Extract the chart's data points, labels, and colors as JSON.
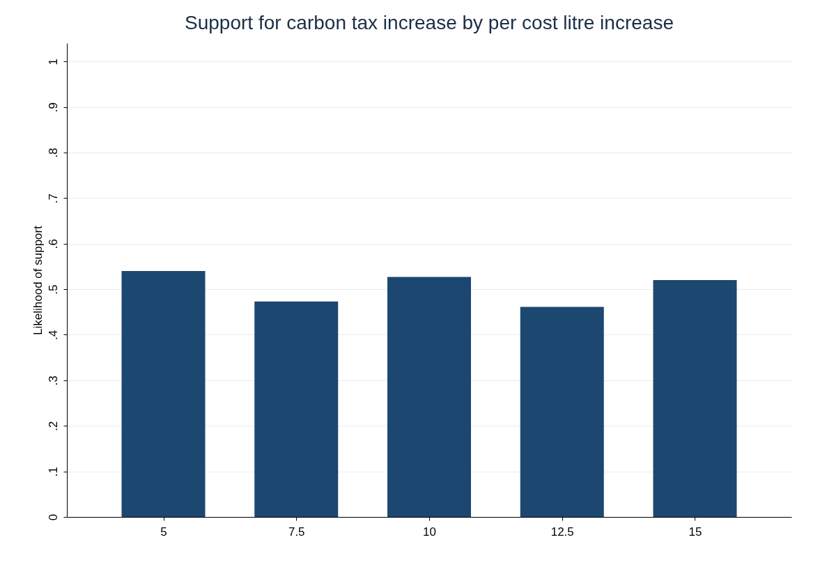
{
  "chart_data": {
    "type": "bar",
    "title": "Support for carbon tax increase by per cost litre increase",
    "ylabel": "Likelihood of support",
    "categories": [
      "5",
      "7.5",
      "10",
      "12.5",
      "15"
    ],
    "values": [
      0.54,
      0.473,
      0.527,
      0.461,
      0.52
    ],
    "color": "#1c4770",
    "ylim": [
      0,
      1.04
    ],
    "yticks": [
      0,
      {
        "value": 0.1,
        "label": ".1"
      },
      {
        "value": 0.2,
        "label": ".2"
      },
      {
        "value": 0.3,
        "label": ".3"
      },
      {
        "value": 0.4,
        "label": ".4"
      },
      {
        "value": 0.5,
        "label": ".5"
      },
      {
        "value": 0.6,
        "label": ".6"
      },
      {
        "value": 0.7,
        "label": ".7"
      },
      {
        "value": 0.8,
        "label": ".8"
      },
      {
        "value": 0.9,
        "label": ".9"
      },
      1
    ],
    "grid": "y"
  }
}
